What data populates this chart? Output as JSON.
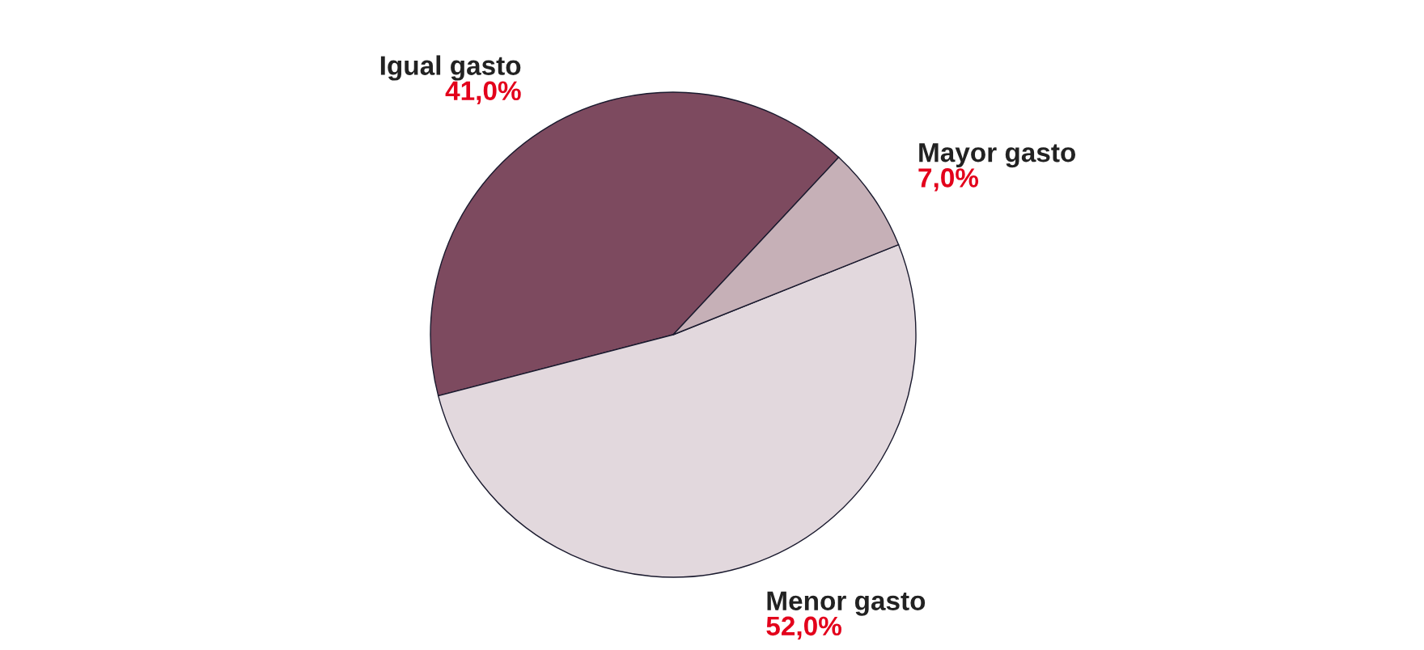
{
  "chart_data": {
    "type": "pie",
    "categories": [
      "Igual gasto",
      "Menor gasto",
      "Mayor gasto"
    ],
    "values": [
      41.0,
      52.0,
      7.0
    ],
    "colors": [
      "#7d4a5f",
      "#e2d8dd",
      "#c6b0b7"
    ],
    "value_labels": [
      "41,0%",
      "52,0%",
      "7,0%"
    ],
    "legend": false
  }
}
